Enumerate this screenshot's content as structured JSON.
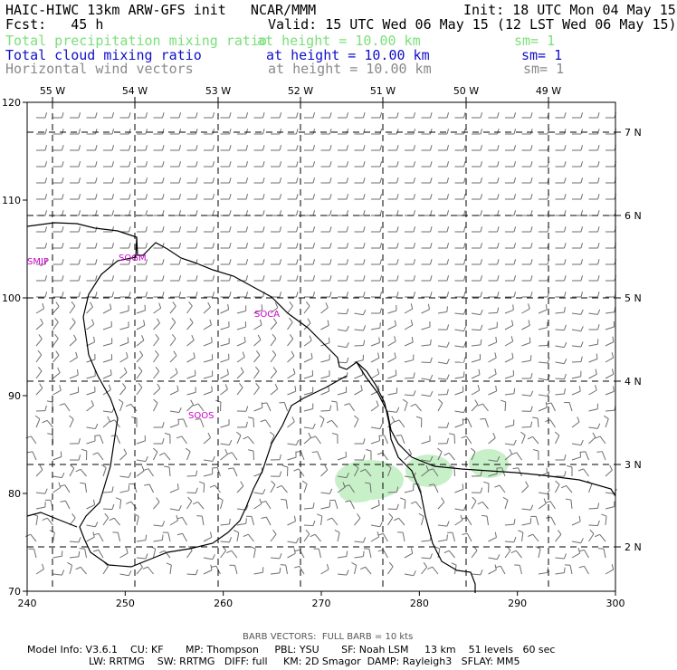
{
  "header": {
    "line1_left": "HAIC-HIWC 13km ARW-GFS init   NCAR/MMM",
    "line1_right": "Init: 18 UTC Mon 04 May 15",
    "line2_left": "Fcst:   45 h",
    "line2_right": "Valid: 15 UTC Wed 06 May 15 (12 LST Wed 06 May 15)",
    "fields": [
      {
        "name": "Total precipitation mixing ratio",
        "height": "at height = 10.00 km",
        "sm": "sm= 1",
        "color": "#7be07b"
      },
      {
        "name": "Total cloud mixing ratio",
        "height": "at height = 10.00 km",
        "sm": "sm= 1",
        "color": "#1010c8"
      },
      {
        "name": "Horizontal wind vectors",
        "height": "at height = 10.00 km",
        "sm": "sm= 1",
        "color": "#8a8a8a"
      }
    ]
  },
  "map": {
    "x_ticks": [
      "240",
      "250",
      "260",
      "270",
      "280",
      "290",
      "300"
    ],
    "y_ticks": [
      "70",
      "80",
      "90",
      "100",
      "110",
      "120"
    ],
    "lon_labels": [
      "55 W",
      "54 W",
      "53 W",
      "52 W",
      "51 W",
      "50 W",
      "49 W"
    ],
    "lat_labels": [
      "7 N",
      "6 N",
      "5 N",
      "4 N",
      "3 N",
      "2 N"
    ],
    "stations": [
      "SMJP",
      "SOGM",
      "SOCA",
      "SOOS"
    ],
    "precip_color": "#c8f0c8",
    "barb_color": "#6e6e6e"
  },
  "footer": {
    "barb_note": "BARB VECTORS:  FULL BARB = 10 kts",
    "line1": "Model Info: V3.6.1    CU: KF       MP: Thompson     PBL: YSU       SF: Noah LSM     13 km    51 levels   60 sec",
    "line2": "LW: RRTMG    SW: RRTMG   DIFF: full     KM: 2D Smagor  DAMP: Rayleigh3   SFLAY: MM5"
  }
}
